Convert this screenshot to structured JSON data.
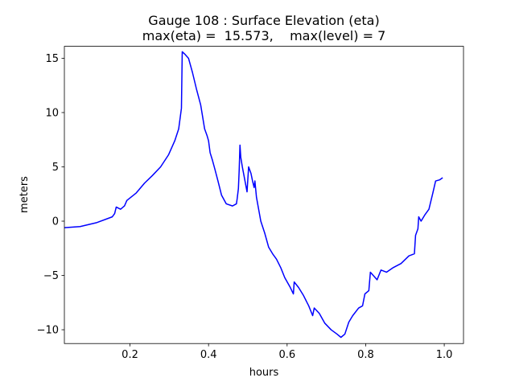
{
  "chart_data": {
    "type": "line",
    "title": "Gauge 108 : Surface Elevation (eta)",
    "subtitle": "max(eta) =  15.573,    max(level) = 7",
    "xlabel": "hours",
    "ylabel": "meters",
    "xlim": [
      0.033,
      1.049
    ],
    "ylim": [
      -11.27,
      16.1
    ],
    "xticks": [
      0.2,
      0.4,
      0.6,
      0.8,
      {
        "value": 1,
        "label": "1.0"
      }
    ],
    "yticks": [
      {
        "value": -10,
        "label": "−10"
      },
      {
        "value": -5,
        "label": "−5"
      },
      0,
      5,
      10,
      15
    ],
    "grid": false,
    "x": [
      0.033,
      0.073,
      0.114,
      0.155,
      0.161,
      0.165,
      0.176,
      0.186,
      0.192,
      0.216,
      0.237,
      0.257,
      0.278,
      0.298,
      0.314,
      0.324,
      0.331,
      0.333,
      0.339,
      0.349,
      0.359,
      0.369,
      0.38,
      0.39,
      0.396,
      0.4,
      0.404,
      0.41,
      0.416,
      0.424,
      0.433,
      0.445,
      0.461,
      0.471,
      0.473,
      0.476,
      0.478,
      0.48,
      0.482,
      0.486,
      0.498,
      0.502,
      0.508,
      0.512,
      0.516,
      0.518,
      0.522,
      0.533,
      0.543,
      0.553,
      0.563,
      0.573,
      0.584,
      0.594,
      0.608,
      0.616,
      0.618,
      0.629,
      0.641,
      0.655,
      0.665,
      0.669,
      0.682,
      0.696,
      0.712,
      0.727,
      0.737,
      0.747,
      0.757,
      0.767,
      0.782,
      0.792,
      0.798,
      0.808,
      0.812,
      0.829,
      0.839,
      0.853,
      0.869,
      0.89,
      0.91,
      0.924,
      0.927,
      0.933,
      0.935,
      0.941,
      0.951,
      0.961,
      0.971,
      0.978,
      0.988,
      0.996
    ],
    "series": [
      {
        "name": "eta",
        "color": "#0000ff",
        "values": [
          -0.6,
          -0.5,
          -0.15,
          0.4,
          0.7,
          1.3,
          1.1,
          1.4,
          1.9,
          2.6,
          3.5,
          4.2,
          5.0,
          6.1,
          7.4,
          8.5,
          10.4,
          15.6,
          15.4,
          15.0,
          13.7,
          12.2,
          10.7,
          8.5,
          7.9,
          7.4,
          6.3,
          5.6,
          4.8,
          3.7,
          2.4,
          1.6,
          1.4,
          1.6,
          2.1,
          3.0,
          4.7,
          7.0,
          5.9,
          5.0,
          2.7,
          5.0,
          4.4,
          3.7,
          3.1,
          3.7,
          2.2,
          0.0,
          -1.1,
          -2.4,
          -3.0,
          -3.5,
          -4.3,
          -5.2,
          -6.1,
          -6.7,
          -5.6,
          -6.1,
          -6.8,
          -7.8,
          -8.7,
          -8.0,
          -8.5,
          -9.4,
          -10.0,
          -10.4,
          -10.7,
          -10.4,
          -9.3,
          -8.7,
          -8.0,
          -7.8,
          -6.7,
          -6.4,
          -4.7,
          -5.4,
          -4.5,
          -4.7,
          -4.3,
          -3.9,
          -3.2,
          -3.0,
          -1.3,
          -0.7,
          0.4,
          0.0,
          0.6,
          1.1,
          2.6,
          3.7,
          3.8,
          4.0
        ]
      }
    ]
  }
}
